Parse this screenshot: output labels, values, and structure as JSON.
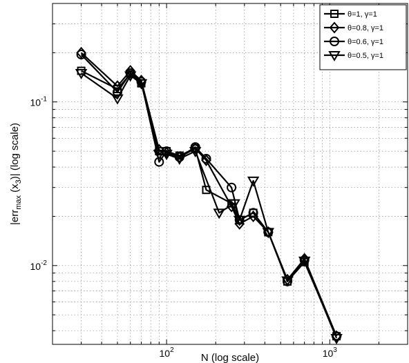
{
  "chart_data": {
    "type": "line",
    "x_scale": "log",
    "y_scale": "log",
    "xlim": [
      20,
      3000
    ],
    "ylim": [
      0.0033,
      0.4
    ],
    "grid": true,
    "legend_position": "top-right",
    "xlabel": "N (log scale)",
    "ylabel": {
      "prefix": "|err",
      "sub1": "max",
      "mid": " (x",
      "sub2": "3",
      "suffix": ")| (log scale)"
    },
    "x_ticks": [
      {
        "base": "10",
        "exp": "2",
        "value": 100
      },
      {
        "base": "10",
        "exp": "3",
        "value": 1000
      }
    ],
    "y_ticks": [
      {
        "base": "10",
        "exp": "-2",
        "value": 0.01
      },
      {
        "base": "10",
        "exp": "-1",
        "value": 0.1
      }
    ],
    "series": [
      {
        "name": "θ=1, γ=1",
        "marker": "square",
        "x": [
          30,
          50,
          60,
          70,
          90,
          100,
          120,
          150,
          175,
          250,
          280,
          340,
          420,
          550,
          700,
          1100
        ],
        "y": [
          0.155,
          0.12,
          0.148,
          0.13,
          0.05,
          0.05,
          0.047,
          0.052,
          0.029,
          0.024,
          0.019,
          0.021,
          0.016,
          0.008,
          0.0105,
          0.0037
        ]
      },
      {
        "name": "θ=0.8, γ=1",
        "marker": "diamond",
        "x": [
          30,
          50,
          60,
          70,
          90,
          100,
          120,
          150,
          175,
          250,
          280,
          340,
          420,
          550,
          700,
          1100
        ],
        "y": [
          0.2,
          0.125,
          0.155,
          0.135,
          0.051,
          0.049,
          0.046,
          0.052,
          0.044,
          0.023,
          0.018,
          0.02,
          0.016,
          0.0082,
          0.011,
          0.0037
        ]
      },
      {
        "name": "θ=0.6, γ=1",
        "marker": "circle",
        "x": [
          30,
          50,
          60,
          70,
          90,
          100,
          120,
          150,
          175,
          250,
          280,
          340,
          420,
          550,
          700,
          1100
        ],
        "y": [
          0.195,
          0.115,
          0.15,
          0.133,
          0.043,
          0.05,
          0.046,
          0.053,
          0.045,
          0.03,
          0.019,
          0.021,
          0.016,
          0.008,
          0.0108,
          0.0037
        ]
      },
      {
        "name": "θ=0.5, γ=1",
        "marker": "triangle-down",
        "x": [
          30,
          50,
          60,
          70,
          90,
          100,
          120,
          150,
          210,
          260,
          280,
          340,
          420,
          550,
          700,
          1100
        ],
        "y": [
          0.15,
          0.105,
          0.145,
          0.13,
          0.048,
          0.048,
          0.045,
          0.05,
          0.021,
          0.024,
          0.019,
          0.033,
          0.016,
          0.0081,
          0.0107,
          0.0036
        ]
      }
    ]
  }
}
